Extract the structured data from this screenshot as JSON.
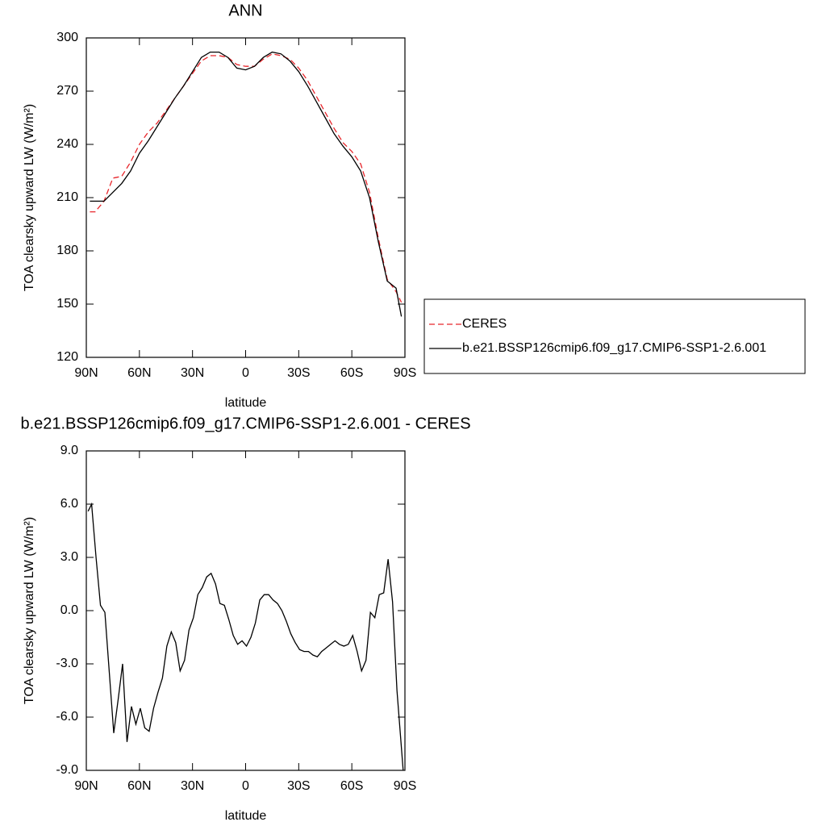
{
  "chart_data": [
    {
      "type": "line",
      "title": "ANN",
      "xlabel": "latitude",
      "ylabel": "TOA clearsky upward LW (W/m²)",
      "x": [
        88,
        85,
        80,
        75,
        70,
        65,
        60,
        55,
        50,
        45,
        40,
        35,
        30,
        25,
        20,
        15,
        10,
        5,
        0,
        -5,
        -10,
        -15,
        -20,
        -25,
        -30,
        -35,
        -40,
        -45,
        -50,
        -55,
        -60,
        -65,
        -70,
        -75,
        -80,
        -85,
        -88
      ],
      "series": [
        {
          "name": "CERES",
          "color": "#e8262b",
          "dashed": true,
          "values": [
            202,
            202,
            208,
            221,
            222,
            230,
            240,
            247,
            252,
            259,
            266,
            273,
            280,
            287,
            290,
            290,
            289,
            285,
            284,
            284,
            288,
            291,
            290,
            288,
            283,
            276,
            267,
            258,
            249,
            241,
            236,
            229,
            213,
            187,
            164,
            157,
            151
          ]
        },
        {
          "name": "b.e21.BSSP126cmip6.f09_g17.CMIP6-SSP1-2.6.001",
          "color": "#000000",
          "dashed": false,
          "values": [
            208,
            208,
            208,
            213,
            218,
            225,
            235,
            242,
            250,
            258,
            266,
            273,
            281,
            289,
            292,
            292,
            289,
            283,
            282,
            284,
            289,
            292,
            291,
            287,
            281,
            273,
            264,
            255,
            246,
            239,
            233,
            225,
            210,
            185,
            163,
            159,
            143
          ]
        }
      ],
      "xlim": [
        90,
        -90
      ],
      "xticks": [
        {
          "value": 90,
          "label": "90N"
        },
        {
          "value": 60,
          "label": "60N"
        },
        {
          "value": 30,
          "label": "30N"
        },
        0,
        {
          "value": -30,
          "label": "30S"
        },
        {
          "value": -60,
          "label": "60S"
        },
        {
          "value": -90,
          "label": "90S"
        }
      ],
      "ylim": [
        120,
        300
      ],
      "yticks": [
        120,
        150,
        180,
        210,
        240,
        270,
        300
      ],
      "legend": "right"
    },
    {
      "type": "line",
      "title": "b.e21.BSSP126cmip6.f09_g17.CMIP6-SSP1-2.6.001 - CERES",
      "xlabel": "latitude",
      "ylabel": "TOA clearsky upward LW (W/m²)",
      "x": [
        89,
        87,
        84.5,
        82,
        79.5,
        77,
        74.5,
        72,
        69.5,
        67,
        64.5,
        62,
        59.5,
        57,
        54.5,
        52,
        49.5,
        47,
        44.5,
        42,
        39.5,
        37,
        34.5,
        32,
        29.5,
        27,
        24.5,
        22,
        19.5,
        17,
        14.5,
        12,
        9.5,
        7,
        4.5,
        2,
        -0.5,
        -3,
        -5.5,
        -8,
        -10.5,
        -13,
        -15.5,
        -18,
        -20.5,
        -23,
        -25.5,
        -28,
        -30.5,
        -33,
        -35.5,
        -38,
        -40.5,
        -43,
        -45.5,
        -48,
        -50.5,
        -53,
        -55.5,
        -58,
        -60.5,
        -63,
        -65.5,
        -68,
        -70.5,
        -73,
        -75.5,
        -78,
        -80.5,
        -83,
        -85.5,
        -89
      ],
      "series": [
        {
          "color": "#000000",
          "dashed": false,
          "values": [
            5.6,
            6.0,
            3.0,
            0.3,
            -0.1,
            -3.5,
            -6.9,
            -5.0,
            -3.0,
            -7.4,
            -5.4,
            -6.4,
            -5.5,
            -6.6,
            -6.8,
            -5.5,
            -4.6,
            -3.8,
            -2.0,
            -1.2,
            -1.8,
            -3.4,
            -2.8,
            -1.1,
            -0.4,
            0.9,
            1.3,
            1.9,
            2.1,
            1.5,
            0.4,
            0.3,
            -0.5,
            -1.4,
            -1.9,
            -1.7,
            -2.0,
            -1.5,
            -0.7,
            0.6,
            0.9,
            0.9,
            0.6,
            0.4,
            0.0,
            -0.6,
            -1.3,
            -1.8,
            -2.2,
            -2.3,
            -2.3,
            -2.5,
            -2.6,
            -2.3,
            -2.1,
            -1.9,
            -1.7,
            -1.9,
            -2.0,
            -1.9,
            -1.4,
            -2.3,
            -3.4,
            -2.8,
            -0.1,
            -0.4,
            0.9,
            1.0,
            2.9,
            0.5,
            -4.5,
            -9.0
          ]
        }
      ],
      "xlim": [
        90,
        -90
      ],
      "xticks": [
        {
          "value": 90,
          "label": "90N"
        },
        {
          "value": 60,
          "label": "60N"
        },
        {
          "value": 30,
          "label": "30N"
        },
        0,
        {
          "value": -30,
          "label": "30S"
        },
        {
          "value": -60,
          "label": "60S"
        },
        {
          "value": -90,
          "label": "90S"
        }
      ],
      "ylim": [
        -9,
        9
      ],
      "yticks": [
        {
          "value": -9,
          "label": "-9.0"
        },
        {
          "value": -6,
          "label": "-6.0"
        },
        {
          "value": -3,
          "label": "-3.0"
        },
        {
          "value": 0,
          "label": "0.0"
        },
        {
          "value": 3,
          "label": "3.0"
        },
        {
          "value": 6,
          "label": "6.0"
        },
        {
          "value": 9,
          "label": "9.0"
        }
      ]
    }
  ]
}
